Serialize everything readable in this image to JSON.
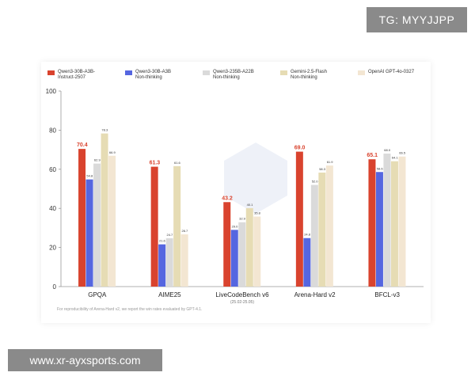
{
  "overlay": {
    "top_right": "TG: MYYJJPP",
    "bottom_left": "www.xr-ayxsports.com"
  },
  "footnote": "For reproducibility of Arena-Hard v2, we report the win rates evaluated by GPT-4.1.",
  "chart_data": {
    "type": "bar",
    "title": "",
    "xlabel": "",
    "ylabel": "",
    "ylim": [
      0,
      100
    ],
    "yticks": [
      0,
      20,
      40,
      60,
      80,
      100
    ],
    "categories": [
      "GPQA",
      "AIME25",
      "LiveCodeBench v6",
      "Arena-Hard v2",
      "BFCL-v3"
    ],
    "category_sublabels": [
      "",
      "",
      "(25.02-25.05)",
      "",
      ""
    ],
    "series": [
      {
        "name": "Qwen3-30B-A3B-\nInstruct-2507",
        "color": "#d9432e",
        "highlight": true,
        "values": [
          70.4,
          61.3,
          43.2,
          69.0,
          65.1
        ]
      },
      {
        "name": "Qwen3-30B-A3B\nNon-thinking",
        "color": "#5566e0",
        "highlight": false,
        "values": [
          54.8,
          21.6,
          29.0,
          24.8,
          58.6
        ]
      },
      {
        "name": "Qwen3-235B-A22B\nNon-thinking",
        "color": "#dadada",
        "highlight": false,
        "values": [
          62.9,
          24.7,
          32.9,
          52.0,
          68.0
        ]
      },
      {
        "name": "Gemini-2.5-Flash\nNon-thinking",
        "color": "#e6dcb4",
        "highlight": false,
        "values": [
          78.3,
          61.6,
          40.1,
          58.3,
          64.1
        ]
      },
      {
        "name": "OpenAI GPT-4o-0327",
        "color": "#f3e6d2",
        "highlight": false,
        "values": [
          66.9,
          26.7,
          35.8,
          61.9,
          66.5
        ]
      }
    ],
    "legend_position": "top"
  }
}
